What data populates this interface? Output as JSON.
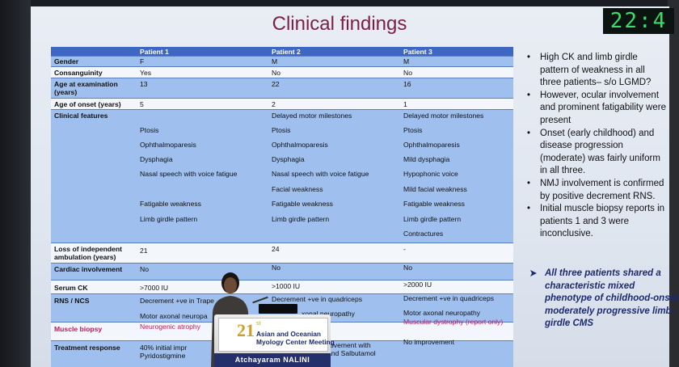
{
  "slide": {
    "title": "Clinical findings",
    "clock": "22:4"
  },
  "table": {
    "headers": [
      "",
      "Patient 1",
      "Patient 2",
      "Patient 3"
    ],
    "rows": {
      "gender": {
        "label": "Gender",
        "p1": "F",
        "p2": "M",
        "p3": "M"
      },
      "consanguinity": {
        "label": "Consanguinity",
        "p1": "Yes",
        "p2": "No",
        "p3": "No"
      },
      "age_exam": {
        "label": "Age at examination (years)",
        "p1": "13",
        "p2": "22",
        "p3": "16"
      },
      "age_onset": {
        "label": "Age of onset (years)",
        "p1": "5",
        "p2": "2",
        "p3": "1"
      },
      "clinical": {
        "label": "Clinical features",
        "p1": [
          "",
          "Ptosis",
          "Ophthalmoparesis",
          "Dysphagia",
          "Nasal speech with voice fatigue",
          "",
          "Fatigable weakness",
          "Limb girdle pattern",
          ""
        ],
        "p2": [
          "Delayed motor milestones",
          "Ptosis",
          "Ophthalmoparesis",
          "Dysphagia",
          "Nasal speech with voice fatigue",
          "Facial weakness",
          "Fatigable weakness",
          "Limb girdle pattern",
          ""
        ],
        "p3": [
          "Delayed motor milestones",
          "Ptosis",
          "Ophthalmoparesis",
          "Mild dysphagia",
          "Hypophonic voice",
          "Mild facial weakness",
          "Fatigable weakness",
          "Limb girdle pattern",
          "Contractures"
        ]
      },
      "loss_ambulation": {
        "label": "Loss of independent ambulation (years)",
        "p1": "21",
        "p2": "24",
        "p3": "-"
      },
      "cardiac": {
        "label": "Cardiac involvement",
        "p1": "No",
        "p2": "No",
        "p3": "No"
      },
      "serum_ck": {
        "label": "Serum CK",
        "p1": ">7000 IU",
        "p2": ">1000 IU",
        "p3": ">2000 IU"
      },
      "rns": {
        "label": "RNS / NCS",
        "p1a": "Decrement +ve in Trape",
        "p1b": "Motor axonal neuropa",
        "p2a": "Decrement +ve in quadriceps",
        "p2b": "xonal neuropathy",
        "p3a": "Decrement +ve in quadriceps",
        "p3b": "Motor axonal neuropathy"
      },
      "biopsy": {
        "label": "Muscle biopsy",
        "p1": "Neurogenic atrophy",
        "p2": "",
        "p3": "Muscular dystrophy (report only)"
      },
      "treatment": {
        "label": "Treatment response",
        "p1a": "40% initial impr",
        "p1b": "Pyridostigmine",
        "p2a": "ovement with",
        "p2b": "ne and Salbutamol",
        "p3": "No improvement"
      }
    }
  },
  "bullets": [
    "High CK and limb girdle pattern of weakness in all three patients– s/o LGMD?",
    "However, ocular involvement and prominent fatigability were present",
    "Onset (early childhood) and disease progression (moderate) was fairly uniform in all three.",
    "NMJ involvement is confirmed by positive decrement RNS.",
    "Initial muscle biopsy reports in patients 1 and 3 were inconclusive."
  ],
  "summary": "All three patients shared a characteristic mixed phenotype of childhood-onset, moderately progressive limb-girdle CMS",
  "podium": {
    "num": "21",
    "suffix": "st",
    "line1": "Asian and Oceanian",
    "line2": "Myology Center Meeting",
    "speaker": "Atchayaram NALINI"
  },
  "colors": {
    "title": "#7a1f48",
    "table_header": "#3e67c4",
    "table_blue_row": "#9fc0ee",
    "biopsy_red": "#c2185b",
    "summary_blue": "#1b2b6e",
    "clock_green": "#3bdc6a"
  },
  "icons": [
    "arrow-bullet-icon",
    "bullet-icon"
  ]
}
